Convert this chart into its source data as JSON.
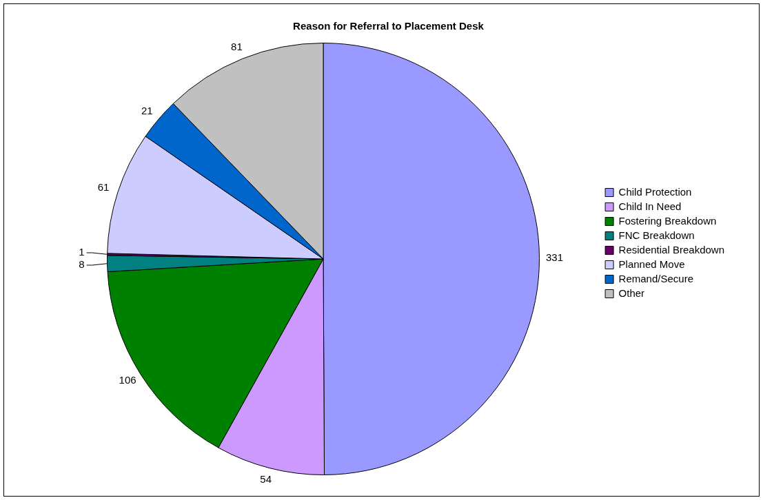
{
  "chart_data": {
    "type": "pie",
    "title": "Reason for Referral to Placement Desk",
    "categories": [
      "Child Protection",
      "Child In Need",
      "Fostering Breakdown",
      "FNC Breakdown",
      "Residential Breakdown",
      "Planned Move",
      "Remand/Secure",
      "Other"
    ],
    "values": [
      331,
      54,
      106,
      8,
      1,
      61,
      21,
      81
    ],
    "colors": [
      "#9999ff",
      "#cc99ff",
      "#008000",
      "#008080",
      "#660066",
      "#ccccff",
      "#0066cc",
      "#c0c0c0"
    ],
    "data_labels": true,
    "legend": "right"
  }
}
